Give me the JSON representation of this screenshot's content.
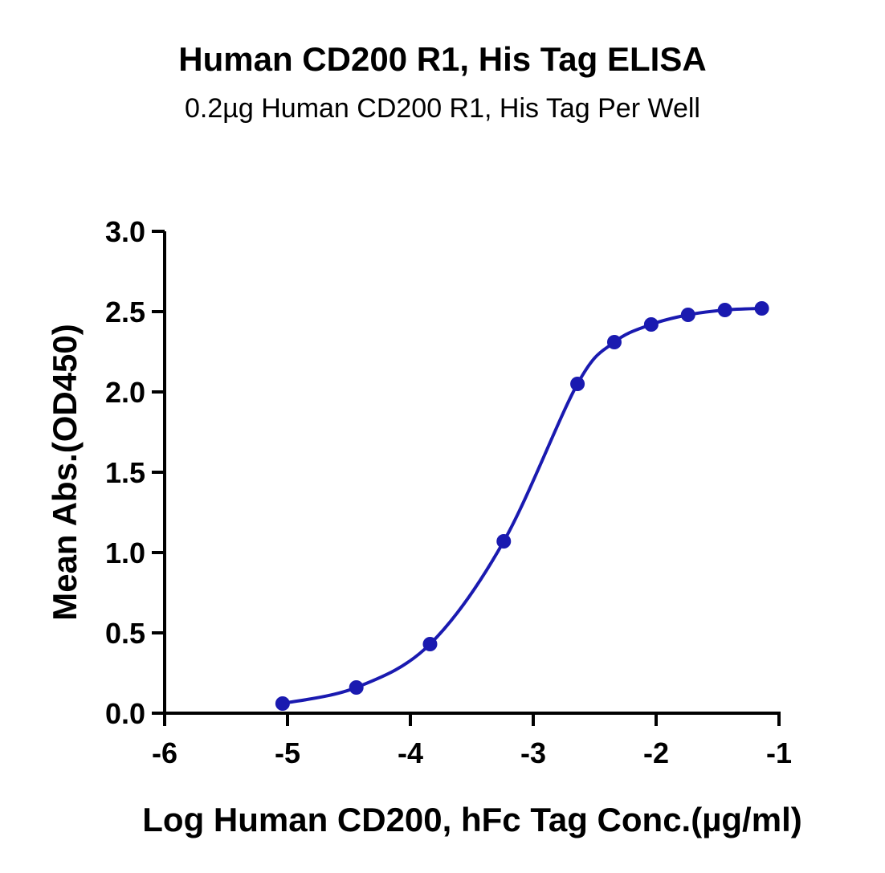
{
  "chart_data": {
    "type": "line",
    "title": "Human CD200 R1, His Tag ELISA",
    "subtitle": "0.2µg Human CD200 R1, His Tag Per Well",
    "xlabel": "Log Human CD200, hFc Tag Conc.(µg/ml)",
    "ylabel": "Mean Abs.(OD450)",
    "xlim": [
      -6,
      -1
    ],
    "ylim": [
      0,
      3.0
    ],
    "x_ticks": [
      "-6",
      "-5",
      "-4",
      "-3",
      "-2",
      "-1"
    ],
    "y_ticks": [
      "0.0",
      "0.5",
      "1.0",
      "1.5",
      "2.0",
      "2.5",
      "3.0"
    ],
    "grid": false,
    "color": "#1a1ab0",
    "series": [
      {
        "x": [
          -5.04,
          -4.44,
          -3.84,
          -3.24,
          -2.64,
          -2.34,
          -2.04,
          -1.74,
          -1.44,
          -1.14
        ],
        "y": [
          0.06,
          0.16,
          0.43,
          1.07,
          2.05,
          2.31,
          2.42,
          2.48,
          2.51,
          2.52
        ]
      }
    ]
  }
}
